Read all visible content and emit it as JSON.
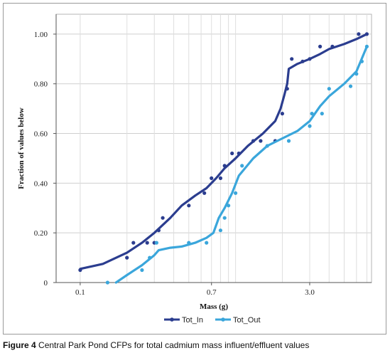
{
  "caption": {
    "label": "Figure 4",
    "text": "Central Park Pond CFPs for total cadmium mass influent/effluent values"
  },
  "chart_data": {
    "type": "line",
    "xlabel": "Mass (g)",
    "ylabel": "Fraction of values below",
    "x_scale": "log",
    "xlim": [
      0.07,
      7.5
    ],
    "ylim": [
      0,
      1.08
    ],
    "x_ticks": [
      0.1,
      0.7,
      3.0
    ],
    "x_tick_labels": [
      "0.1",
      "0.7",
      "3.0"
    ],
    "y_ticks": [
      0,
      0.2,
      0.4,
      0.6,
      0.8,
      1.0
    ],
    "y_tick_labels": [
      "0",
      "0.20",
      "0.40",
      "0.60",
      "0.80",
      "1.00"
    ],
    "grid": true,
    "legend": "bottom",
    "series": [
      {
        "name": "Tot_In",
        "color": "#2b3d8f",
        "line": [
          [
            0.1,
            0.055
          ],
          [
            0.14,
            0.075
          ],
          [
            0.2,
            0.12
          ],
          [
            0.25,
            0.16
          ],
          [
            0.3,
            0.2
          ],
          [
            0.38,
            0.26
          ],
          [
            0.45,
            0.31
          ],
          [
            0.55,
            0.35
          ],
          [
            0.65,
            0.38
          ],
          [
            0.75,
            0.42
          ],
          [
            0.85,
            0.46
          ],
          [
            1.0,
            0.5
          ],
          [
            1.2,
            0.55
          ],
          [
            1.5,
            0.6
          ],
          [
            1.8,
            0.65
          ],
          [
            1.95,
            0.7
          ],
          [
            2.05,
            0.75
          ],
          [
            2.15,
            0.8
          ],
          [
            2.2,
            0.86
          ],
          [
            2.5,
            0.88
          ],
          [
            3.0,
            0.9
          ],
          [
            3.5,
            0.92
          ],
          [
            4.0,
            0.94
          ],
          [
            5.0,
            0.96
          ],
          [
            6.0,
            0.98
          ],
          [
            7.0,
            1.0
          ]
        ],
        "points": [
          [
            0.1,
            0.05
          ],
          [
            0.2,
            0.1
          ],
          [
            0.22,
            0.16
          ],
          [
            0.27,
            0.16
          ],
          [
            0.3,
            0.16
          ],
          [
            0.32,
            0.21
          ],
          [
            0.34,
            0.26
          ],
          [
            0.5,
            0.31
          ],
          [
            0.63,
            0.36
          ],
          [
            0.7,
            0.42
          ],
          [
            0.8,
            0.42
          ],
          [
            0.85,
            0.47
          ],
          [
            0.95,
            0.52
          ],
          [
            1.05,
            0.52
          ],
          [
            1.3,
            0.57
          ],
          [
            1.45,
            0.57
          ],
          [
            1.8,
            0.57
          ],
          [
            2.0,
            0.68
          ],
          [
            2.15,
            0.78
          ],
          [
            2.3,
            0.9
          ],
          [
            2.7,
            0.89
          ],
          [
            3.0,
            0.9
          ],
          [
            3.5,
            0.95
          ],
          [
            4.2,
            0.95
          ],
          [
            6.2,
            1.0
          ],
          [
            7.0,
            1.0
          ]
        ]
      },
      {
        "name": "Tot_Out",
        "color": "#3aa6db",
        "line": [
          [
            0.17,
            0.0
          ],
          [
            0.2,
            0.03
          ],
          [
            0.25,
            0.07
          ],
          [
            0.3,
            0.11
          ],
          [
            0.32,
            0.13
          ],
          [
            0.38,
            0.14
          ],
          [
            0.45,
            0.145
          ],
          [
            0.55,
            0.16
          ],
          [
            0.65,
            0.18
          ],
          [
            0.72,
            0.2
          ],
          [
            0.78,
            0.26
          ],
          [
            0.85,
            0.3
          ],
          [
            0.95,
            0.36
          ],
          [
            1.05,
            0.43
          ],
          [
            1.3,
            0.5
          ],
          [
            1.6,
            0.55
          ],
          [
            2.0,
            0.58
          ],
          [
            2.5,
            0.61
          ],
          [
            3.0,
            0.65
          ],
          [
            3.5,
            0.71
          ],
          [
            4.0,
            0.75
          ],
          [
            5.0,
            0.8
          ],
          [
            6.0,
            0.85
          ],
          [
            7.0,
            0.95
          ]
        ],
        "points": [
          [
            0.15,
            0.0
          ],
          [
            0.25,
            0.05
          ],
          [
            0.28,
            0.1
          ],
          [
            0.31,
            0.16
          ],
          [
            0.5,
            0.16
          ],
          [
            0.65,
            0.16
          ],
          [
            0.8,
            0.21
          ],
          [
            0.85,
            0.26
          ],
          [
            0.9,
            0.31
          ],
          [
            1.0,
            0.36
          ],
          [
            1.1,
            0.47
          ],
          [
            1.6,
            0.55
          ],
          [
            2.2,
            0.57
          ],
          [
            3.0,
            0.63
          ],
          [
            3.1,
            0.68
          ],
          [
            3.6,
            0.68
          ],
          [
            4.0,
            0.78
          ],
          [
            5.5,
            0.79
          ],
          [
            6.0,
            0.84
          ],
          [
            6.5,
            0.89
          ],
          [
            7.0,
            0.95
          ]
        ]
      }
    ]
  }
}
